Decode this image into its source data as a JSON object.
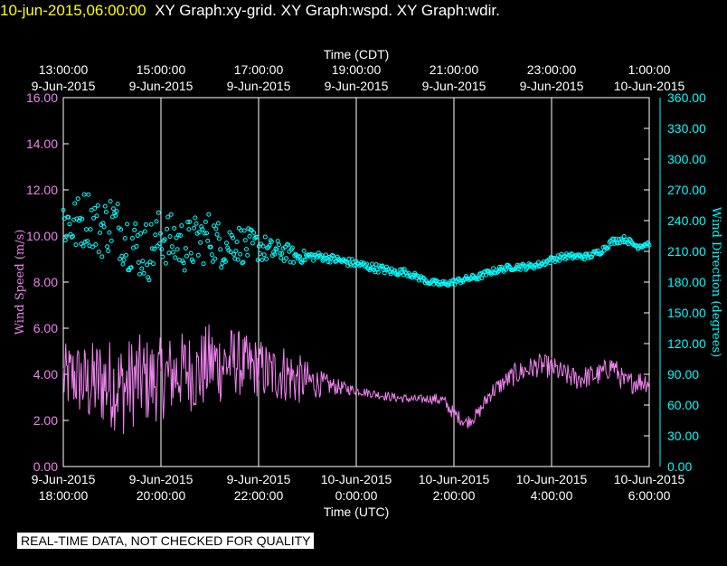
{
  "header": {
    "timestamp": "10-jun-2015,06:00:00",
    "graphs": "XY Graph:xy-grid.  XY Graph:wspd.  XY Graph:wdir."
  },
  "footer": {
    "quality_note": "REAL-TIME DATA, NOT CHECKED FOR QUALITY"
  },
  "chart_data": {
    "type": "line+scatter",
    "top_axis": {
      "title": "Time (CDT)",
      "ticks": [
        {
          "time": "13:00:00",
          "date": "9-Jun-2015"
        },
        {
          "time": "15:00:00",
          "date": "9-Jun-2015"
        },
        {
          "time": "17:00:00",
          "date": "9-Jun-2015"
        },
        {
          "time": "19:00:00",
          "date": "9-Jun-2015"
        },
        {
          "time": "21:00:00",
          "date": "9-Jun-2015"
        },
        {
          "time": "23:00:00",
          "date": "9-Jun-2015"
        },
        {
          "time": "1:00:00",
          "date": "10-Jun-2015"
        }
      ]
    },
    "bottom_axis": {
      "title": "Time (UTC)",
      "ticks": [
        {
          "date": "9-Jun-2015",
          "time": "18:00:00"
        },
        {
          "date": "9-Jun-2015",
          "time": "20:00:00"
        },
        {
          "date": "9-Jun-2015",
          "time": "22:00:00"
        },
        {
          "date": "10-Jun-2015",
          "time": "0:00:00"
        },
        {
          "date": "10-Jun-2015",
          "time": "2:00:00"
        },
        {
          "date": "10-Jun-2015",
          "time": "4:00:00"
        },
        {
          "date": "10-Jun-2015",
          "time": "6:00:00"
        }
      ],
      "range_hours": [
        0,
        12
      ]
    },
    "left_axis": {
      "title": "Wind Speed (m/s)",
      "color": "#ee82ee",
      "range": [
        0,
        16
      ],
      "ticks": [
        "0.00",
        "2.00",
        "4.00",
        "6.00",
        "8.00",
        "10.00",
        "12.00",
        "14.00",
        "16.00"
      ]
    },
    "right_axis": {
      "title": "Wind Direction (degrees)",
      "color": "#00ffff",
      "range": [
        0,
        360
      ],
      "ticks": [
        "0.00",
        "30.00",
        "60.00",
        "90.00",
        "120.00",
        "150.00",
        "180.00",
        "210.00",
        "240.00",
        "270.00",
        "300.00",
        "330.00",
        "360.00"
      ]
    },
    "series": [
      {
        "name": "Wind Speed",
        "kind": "line",
        "color": "#ee82ee",
        "x_hours": [
          0,
          0.25,
          0.5,
          0.75,
          1,
          1.25,
          1.5,
          1.75,
          2,
          2.25,
          2.5,
          2.75,
          3,
          3.25,
          3.5,
          3.75,
          4,
          4.25,
          4.5,
          4.75,
          5,
          5.25,
          5.5,
          5.75,
          6,
          6.25,
          6.5,
          6.75,
          7,
          7.25,
          7.5,
          7.75,
          8,
          8.25,
          8.5,
          8.75,
          9,
          9.25,
          9.5,
          9.75,
          10,
          10.25,
          10.5,
          10.75,
          11,
          11.25,
          11.5,
          11.75,
          12
        ],
        "mean": [
          3.8,
          3.9,
          3.5,
          3.7,
          3.6,
          3.4,
          3.8,
          3.7,
          3.8,
          4.0,
          4.2,
          4.0,
          4.5,
          4.4,
          4.6,
          4.3,
          4.3,
          4.0,
          4.1,
          3.8,
          3.7,
          3.6,
          3.5,
          3.4,
          3.3,
          3.2,
          3.1,
          3.0,
          2.95,
          2.9,
          2.95,
          2.9,
          2.3,
          1.9,
          2.3,
          3.2,
          3.6,
          4.0,
          4.2,
          4.4,
          4.3,
          4.0,
          3.8,
          3.9,
          4.0,
          4.4,
          3.6,
          3.7,
          3.7
        ],
        "spread": [
          1.5,
          1.6,
          1.8,
          2.0,
          2.0,
          2.1,
          2.0,
          1.9,
          1.8,
          1.8,
          1.7,
          1.8,
          1.8,
          1.7,
          1.5,
          1.4,
          1.3,
          1.3,
          1.3,
          1.2,
          0.9,
          0.6,
          0.4,
          0.3,
          0.2,
          0.2,
          0.2,
          0.2,
          0.2,
          0.2,
          0.2,
          0.3,
          0.3,
          0.3,
          0.3,
          0.4,
          0.4,
          0.5,
          0.5,
          0.5,
          0.5,
          0.5,
          0.5,
          0.5,
          0.5,
          0.5,
          0.5,
          0.5,
          0.5
        ]
      },
      {
        "name": "Wind Direction",
        "kind": "scatter",
        "color": "#00ffff",
        "x_hours": [
          0,
          0.25,
          0.5,
          0.75,
          1,
          1.25,
          1.5,
          1.75,
          2,
          2.25,
          2.5,
          2.75,
          3,
          3.25,
          3.5,
          3.75,
          4,
          4.25,
          4.5,
          4.75,
          5,
          5.25,
          5.5,
          5.75,
          6,
          6.25,
          6.5,
          6.75,
          7,
          7.25,
          7.5,
          7.75,
          8,
          8.25,
          8.5,
          8.75,
          9,
          9.25,
          9.5,
          9.75,
          10,
          10.25,
          10.5,
          10.75,
          11,
          11.25,
          11.5,
          11.75,
          12
        ],
        "mean": [
          240,
          235,
          245,
          230,
          240,
          225,
          215,
          210,
          225,
          220,
          215,
          220,
          225,
          215,
          220,
          215,
          215,
          210,
          210,
          205,
          205,
          205,
          203,
          200,
          198,
          195,
          193,
          190,
          190,
          185,
          180,
          178,
          180,
          183,
          185,
          190,
          193,
          195,
          195,
          197,
          202,
          205,
          205,
          205,
          210,
          220,
          222,
          215,
          218
        ],
        "spread": [
          28,
          28,
          28,
          28,
          30,
          30,
          30,
          30,
          28,
          26,
          26,
          26,
          25,
          22,
          20,
          18,
          15,
          12,
          10,
          8,
          5,
          4,
          4,
          4,
          4,
          4,
          4,
          4,
          3,
          3,
          3,
          3,
          3,
          3,
          3,
          3,
          3,
          3,
          3,
          3,
          3,
          3,
          3,
          3,
          3,
          3,
          3,
          3,
          3
        ]
      }
    ]
  }
}
